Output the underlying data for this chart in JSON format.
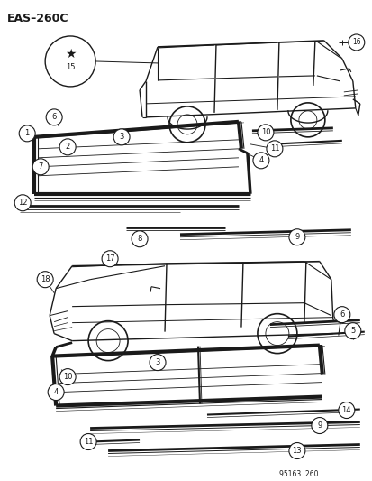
{
  "diagram_id": "EAS–260C",
  "footer": "95163  260",
  "bg_color": "#ffffff",
  "line_color": "#1a1a1a",
  "fig_width": 4.14,
  "fig_height": 5.33,
  "dpi": 100
}
